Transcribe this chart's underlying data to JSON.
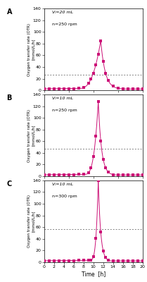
{
  "panels": [
    {
      "label": "A",
      "vl": "Vₗ=20 mL",
      "rpm": "n=250 rpm",
      "peak_time": 11.5,
      "peak_value": 85,
      "dashed_line": 27,
      "ylim": [
        0,
        140
      ],
      "yticks": [
        0,
        20,
        40,
        60,
        80,
        100,
        120,
        140
      ],
      "rise_steepness": 2.8,
      "decay_rate": 1.1,
      "rise_start": 7.0
    },
    {
      "label": "B",
      "vl": "Vₗ=10 mL",
      "rpm": "n=250 rpm",
      "peak_time": 11.0,
      "peak_value": 128,
      "dashed_line": 47,
      "ylim": [
        0,
        140
      ],
      "yticks": [
        0,
        20,
        40,
        60,
        80,
        100,
        120,
        140
      ],
      "rise_steepness": 3.5,
      "decay_rate": 1.5,
      "rise_start": 8.0
    },
    {
      "label": "C",
      "vl": "Vₗ=10 mL",
      "rpm": "n=300 rpm",
      "peak_time": 11.0,
      "peak_value": 140,
      "dashed_line": 57,
      "ylim": [
        0,
        140
      ],
      "yticks": [
        0,
        20,
        40,
        60,
        80,
        100,
        120,
        140
      ],
      "rise_steepness": 4.5,
      "decay_rate": 2.0,
      "rise_start": 9.0
    }
  ],
  "xlim": [
    0,
    20
  ],
  "xticks": [
    0,
    2,
    4,
    6,
    8,
    10,
    12,
    14,
    16,
    18,
    20
  ],
  "xlabel": "Time  [h]",
  "ylabel": "Oxygen transfer rate (OTR)\n[mmol/L/h]",
  "line_color": "#CC1177",
  "marker_color": "#CC1177",
  "bg_color": "#ffffff",
  "marker_size": 2.5,
  "base_value": 2.5
}
